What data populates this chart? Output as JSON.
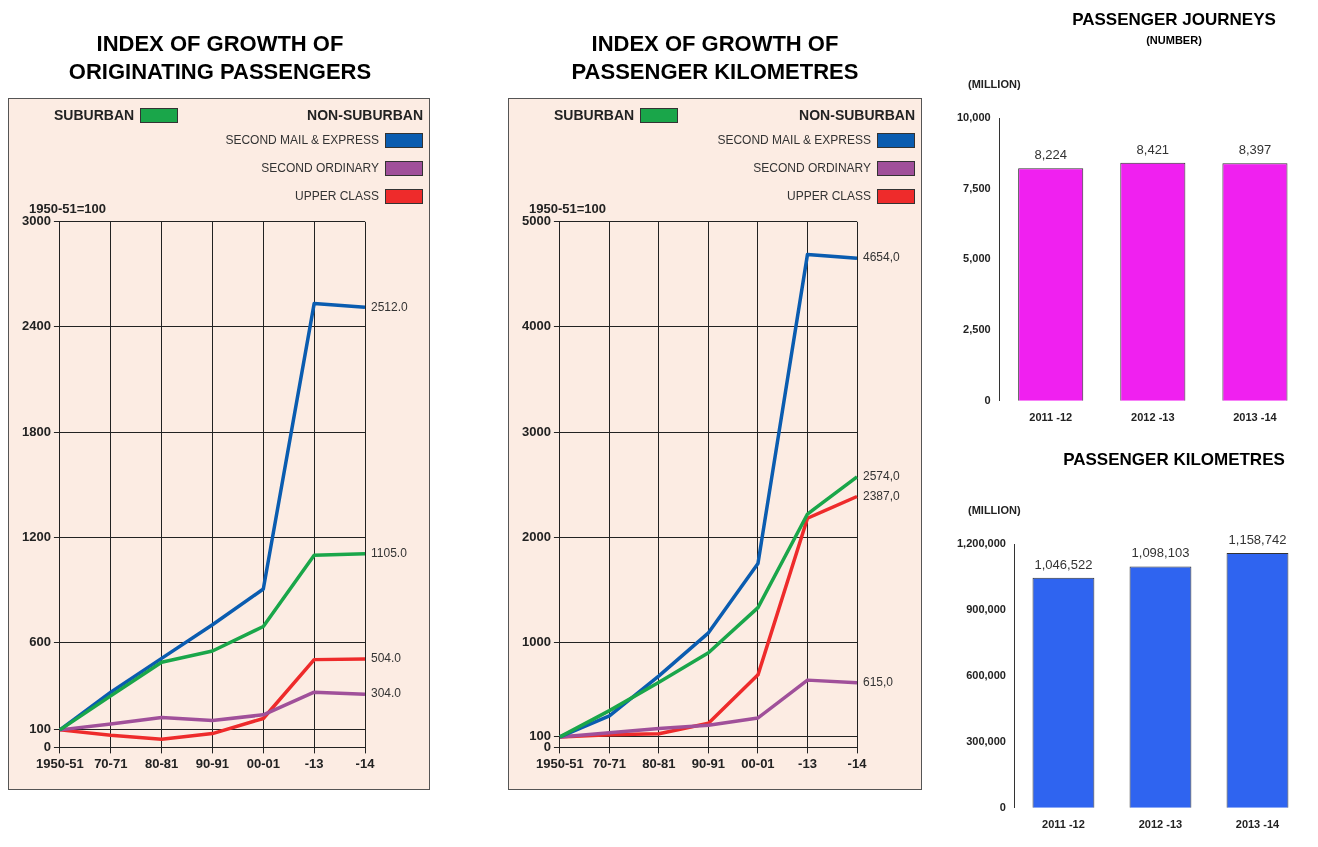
{
  "chart_data": [
    {
      "type": "line",
      "title": "INDEX OF GROWTH OF ORIGINATING PASSENGERS",
      "ylabel": "1950-51=100",
      "legend_title": "NON-SUBURBAN",
      "legend": "top",
      "grid": true,
      "categories": [
        "1950-51",
        "70-71",
        "80-81",
        "90-91",
        "00-01",
        "-13",
        "-14"
      ],
      "ylim": [
        0,
        3000
      ],
      "yticks": [
        0,
        100,
        600,
        1200,
        1800,
        2400,
        3000
      ],
      "series": [
        {
          "name": "SUBURBAN",
          "color": "#1aa64a",
          "values": [
            100,
            294,
            486,
            550,
            690,
            1097,
            1105
          ],
          "value_labels": [
            null,
            null,
            null,
            null,
            null,
            null,
            "1105.0"
          ]
        },
        {
          "name": "SECOND MAIL & EXPRESS",
          "color": "#0a5cb0",
          "values": [
            100,
            315,
            508,
            700,
            904,
            2533,
            2512
          ],
          "value_labels": [
            null,
            null,
            null,
            null,
            null,
            null,
            "2512.0"
          ]
        },
        {
          "name": "SECOND ORDINARY",
          "color": "#a0509a",
          "values": [
            100,
            133,
            171,
            154,
            186,
            315,
            304
          ],
          "value_labels": [
            null,
            null,
            null,
            null,
            null,
            null,
            "304.0"
          ]
        },
        {
          "name": "UPPER CLASS",
          "color": "#ee2b2b",
          "values": [
            100,
            69,
            47,
            79,
            165,
            501,
            504
          ],
          "value_labels": [
            null,
            null,
            null,
            null,
            null,
            null,
            "504.0"
          ]
        }
      ]
    },
    {
      "type": "line",
      "title": "INDEX OF GROWTH OF PASSENGER KILOMETRES",
      "ylabel": "1950-51=100",
      "legend_title": "NON-SUBURBAN",
      "legend": "top",
      "grid": true,
      "categories": [
        "1950-51",
        "70-71",
        "80-81",
        "90-91",
        "00-01",
        "-13",
        "-14"
      ],
      "ylim": [
        0,
        5000
      ],
      "yticks": [
        0,
        100,
        1000,
        2000,
        3000,
        4000,
        5000
      ],
      "series": [
        {
          "name": "SUBURBAN",
          "color": "#1aa64a",
          "values": [
            100,
            350,
            620,
            900,
            1330,
            2220,
            2574
          ],
          "value_labels": [
            null,
            null,
            null,
            null,
            null,
            null,
            "2574,0"
          ]
        },
        {
          "name": "SECOND MAIL & EXPRESS",
          "color": "#0a5cb0",
          "values": [
            100,
            300,
            680,
            1090,
            1750,
            4690,
            4654
          ],
          "value_labels": [
            null,
            null,
            null,
            null,
            null,
            null,
            "4654,0"
          ]
        },
        {
          "name": "SECOND ORDINARY",
          "color": "#a0509a",
          "values": [
            100,
            140,
            180,
            210,
            280,
            640,
            615
          ],
          "value_labels": [
            null,
            null,
            null,
            null,
            null,
            null,
            "615,0"
          ]
        },
        {
          "name": "UPPER CLASS",
          "color": "#ee2b2b",
          "values": [
            100,
            120,
            130,
            230,
            690,
            2180,
            2387
          ],
          "value_labels": [
            null,
            null,
            null,
            null,
            null,
            null,
            "2387,0"
          ]
        }
      ]
    },
    {
      "type": "bar",
      "title": "PASSENGER JOURNEYS",
      "subtitle": "(NUMBER)",
      "ylabel": "(MILLION)",
      "categories": [
        "2011 -12",
        "2012 -13",
        "2013 -14"
      ],
      "values": [
        8224,
        8421,
        8397
      ],
      "value_labels": [
        "8,224",
        "8,421",
        "8,397"
      ],
      "color": "#f020f0",
      "ylim": [
        0,
        10000
      ],
      "yticks": [
        0,
        {
          "value": 2500,
          "label": "2,500"
        },
        {
          "value": 5000,
          "label": "5,000"
        },
        {
          "value": 7500,
          "label": "7,500"
        },
        {
          "value": 10000,
          "label": "10,000"
        }
      ]
    },
    {
      "type": "bar",
      "title": "PASSENGER KILOMETRES",
      "ylabel": "(MILLION)",
      "categories": [
        "2011 -12",
        "2012 -13",
        "2013 -14"
      ],
      "values": [
        1046522,
        1098103,
        1158742
      ],
      "value_labels": [
        "1,046,522",
        "1,098,103",
        "1,158,742"
      ],
      "color": "#2f64f0",
      "ylim": [
        0,
        1200000
      ],
      "yticks": [
        0,
        {
          "value": 300000,
          "label": "300,000"
        },
        {
          "value": 600000,
          "label": "600,000"
        },
        {
          "value": 900000,
          "label": "900,000"
        },
        {
          "value": 1200000,
          "label": "1,200,000"
        }
      ]
    }
  ]
}
